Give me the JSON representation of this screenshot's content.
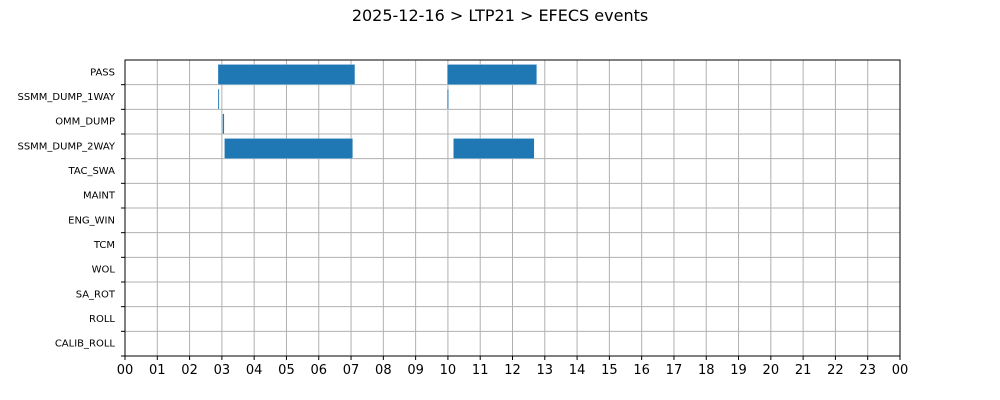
{
  "chart_data": {
    "type": "bar",
    "orientation": "horizontal-timeline",
    "title": "2025-12-16 > LTP21 > EFECS events",
    "xlabel": "",
    "ylabel": "",
    "x_range_hours": [
      0,
      24
    ],
    "x_tick_labels": [
      "00",
      "01",
      "02",
      "03",
      "04",
      "05",
      "06",
      "07",
      "08",
      "09",
      "10",
      "11",
      "12",
      "13",
      "14",
      "15",
      "16",
      "17",
      "18",
      "19",
      "20",
      "21",
      "22",
      "23",
      "00"
    ],
    "categories": [
      "PASS",
      "SSMM_DUMP_1WAY",
      "OMM_DUMP",
      "SSMM_DUMP_2WAY",
      "TAC_SWA",
      "MAINT",
      "ENG_WIN",
      "TCM",
      "WOL",
      "SA_ROT",
      "ROLL",
      "CALIB_ROLL"
    ],
    "grid": true,
    "bar_color": "#1f77b4",
    "events": [
      {
        "category": "PASS",
        "start": 2.88,
        "end": 7.12
      },
      {
        "category": "PASS",
        "start": 9.98,
        "end": 12.75
      },
      {
        "category": "SSMM_DUMP_1WAY",
        "start": 2.88,
        "end": 2.92
      },
      {
        "category": "SSMM_DUMP_1WAY",
        "start": 9.98,
        "end": 10.02
      },
      {
        "category": "OMM_DUMP",
        "start": 3.02,
        "end": 3.07
      },
      {
        "category": "SSMM_DUMP_2WAY",
        "start": 3.08,
        "end": 7.05
      },
      {
        "category": "SSMM_DUMP_2WAY",
        "start": 10.17,
        "end": 12.67
      }
    ]
  }
}
